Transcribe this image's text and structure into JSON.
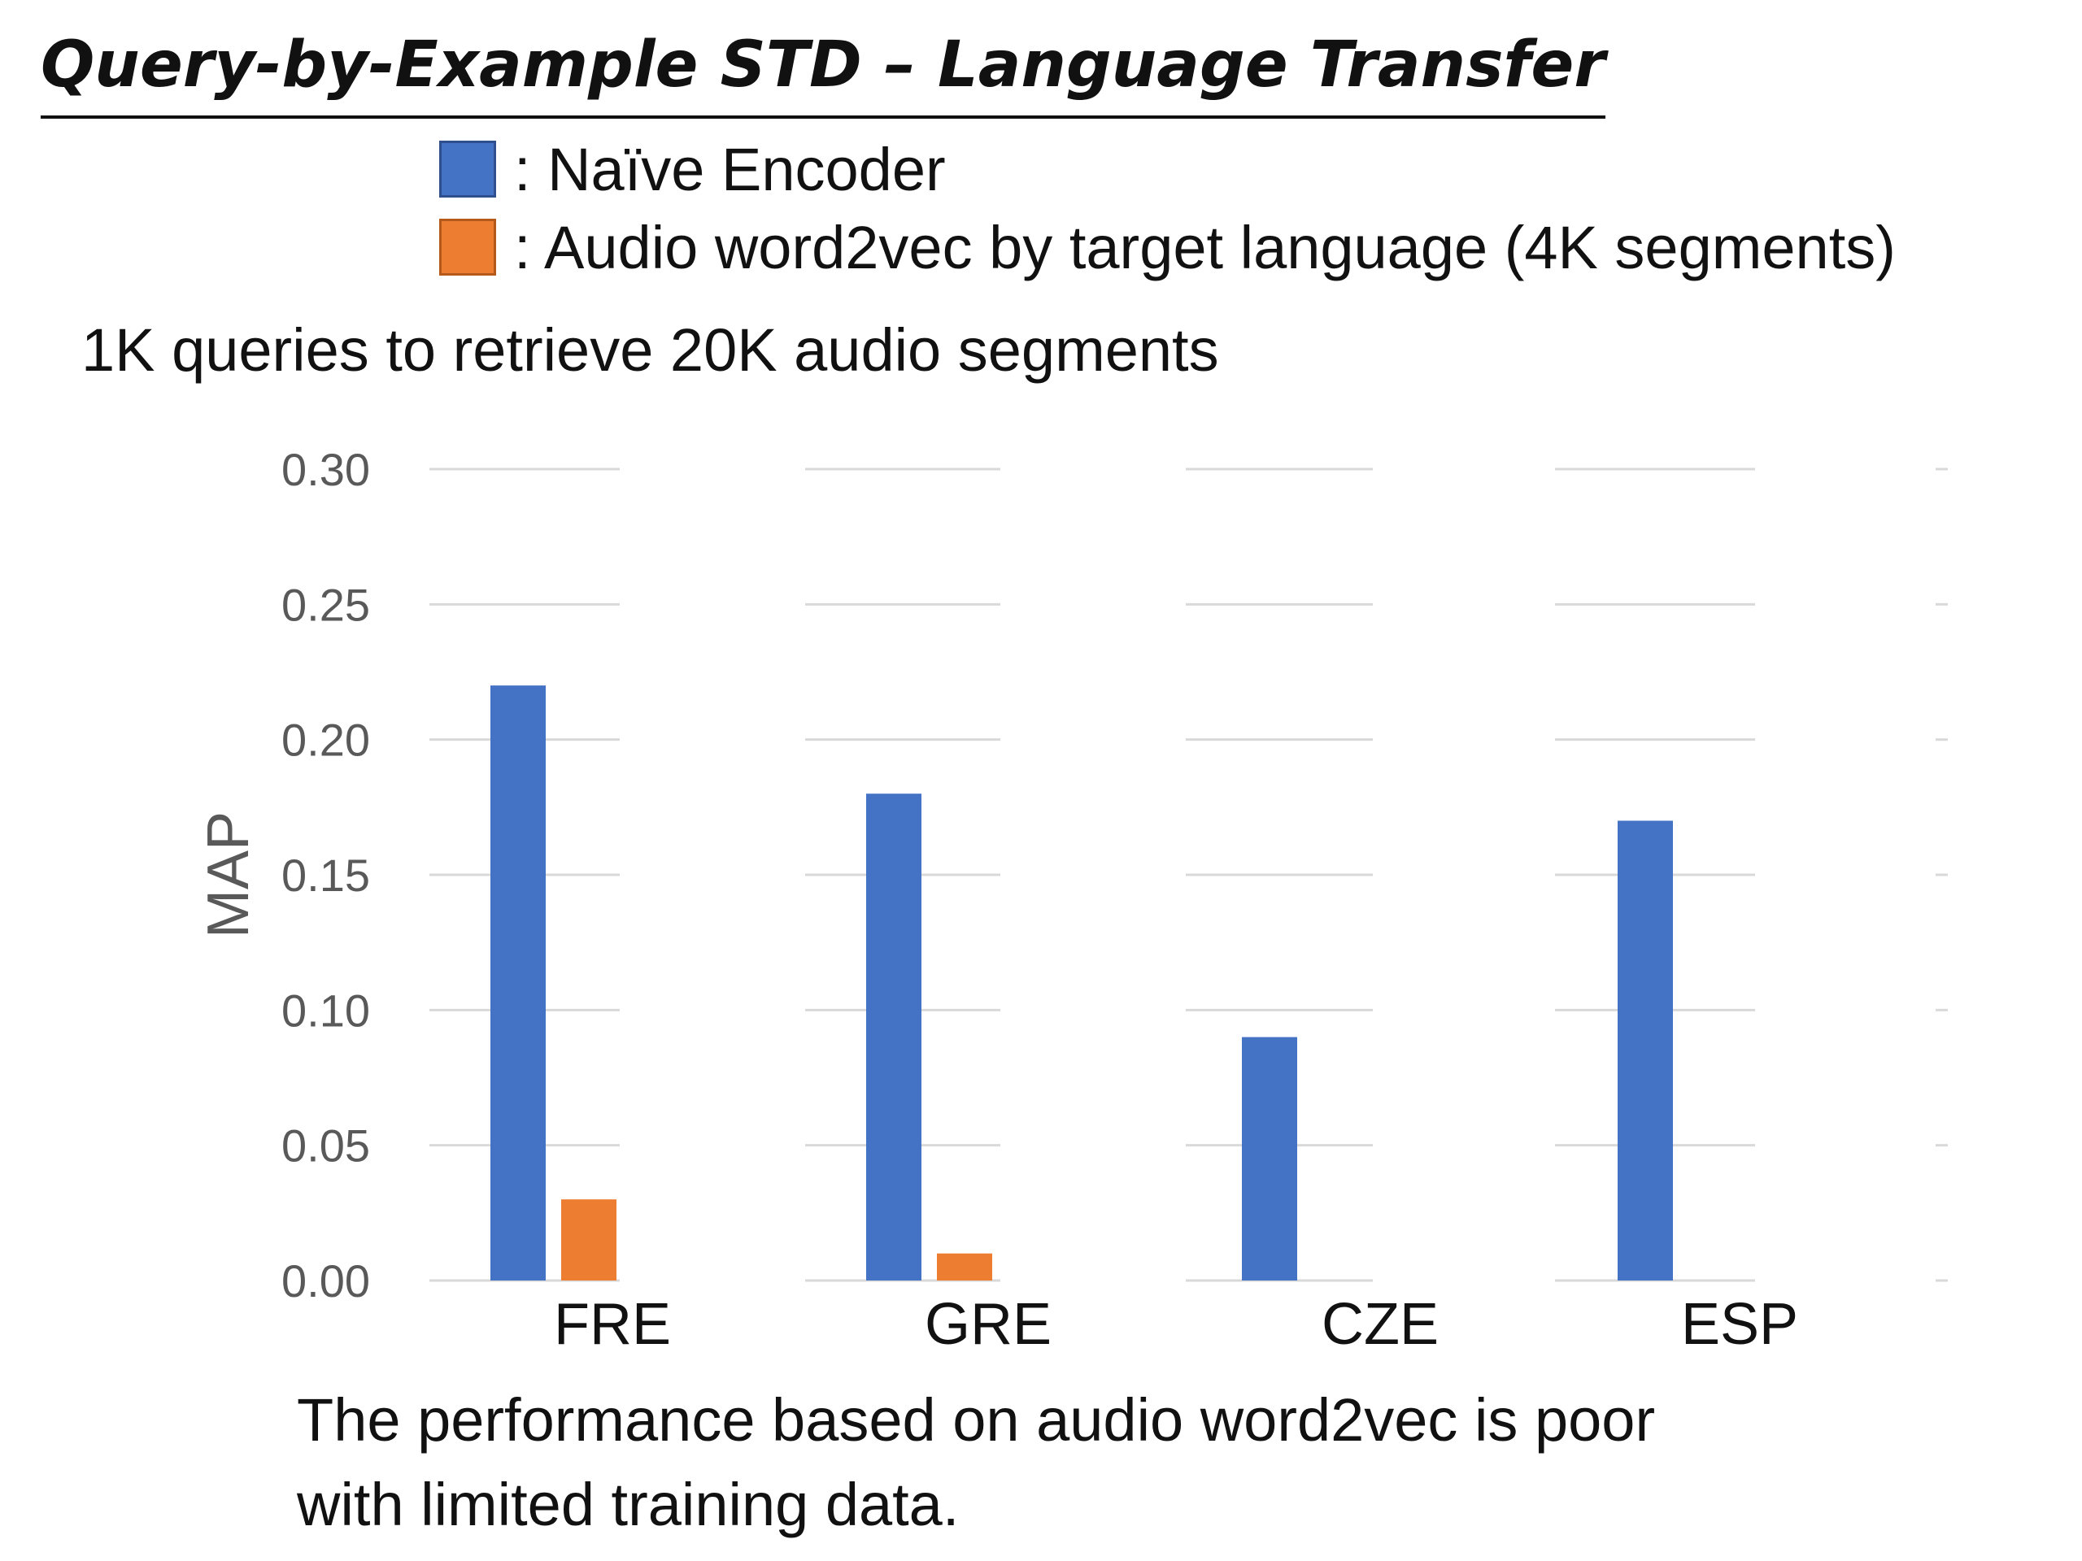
{
  "title": "Query-by-Example STD – Language Transfer",
  "legend": [
    {
      "label": ": Naïve Encoder",
      "color": "#4472c4"
    },
    {
      "label": ": Audio word2vec  by target language (4K segments)",
      "color": "#ed7d31"
    }
  ],
  "subtitle": "1K queries to retrieve 20K audio segments",
  "chart_data": {
    "type": "bar",
    "categories": [
      "FRE",
      "GRE",
      "CZE",
      "ESP"
    ],
    "series": [
      {
        "name": "Naïve Encoder",
        "color": "#4472c4",
        "values": [
          0.22,
          0.18,
          0.09,
          0.17
        ]
      },
      {
        "name": "Audio word2vec by target language (4K segments)",
        "color": "#ed7d31",
        "values": [
          0.03,
          0.01,
          0.0,
          0.0
        ]
      }
    ],
    "ylabel": "MAP",
    "ylim": [
      0,
      0.3
    ],
    "yticks": [
      "0.00",
      "0.05",
      "0.10",
      "0.15",
      "0.20",
      "0.25",
      "0.30"
    ],
    "grid": true
  },
  "note": {
    "line1": "The performance based on audio word2vec is poor",
    "line2": "with limited training data."
  }
}
